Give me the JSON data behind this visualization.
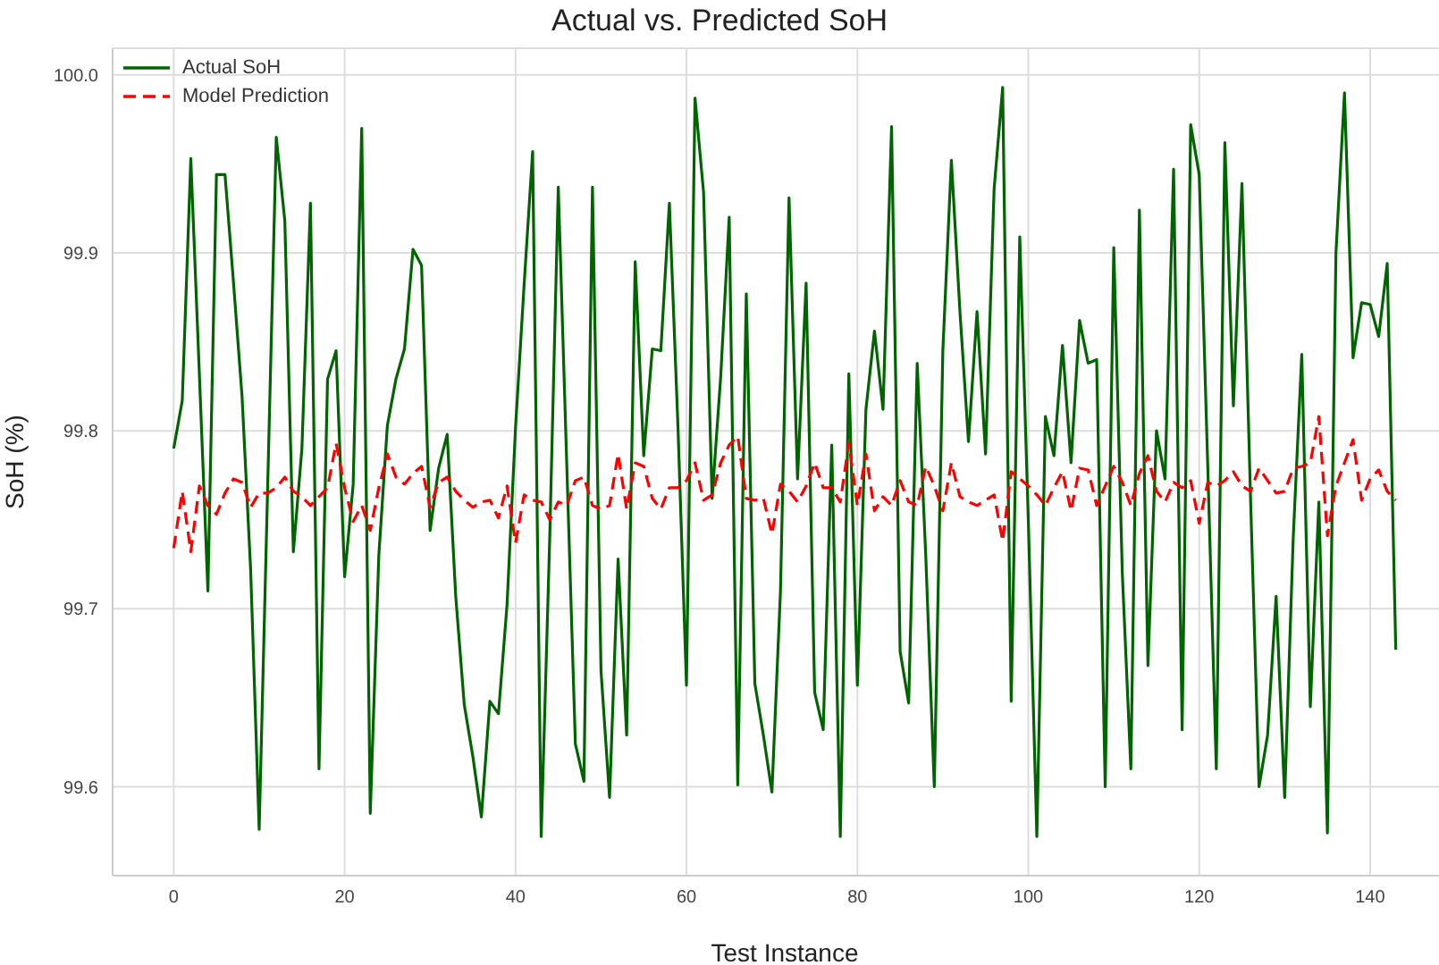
{
  "chart_data": {
    "type": "line",
    "title": "Actual vs. Predicted SoH",
    "xlabel": "Test Instance",
    "ylabel": "SoH (%)",
    "x": [
      0,
      1,
      2,
      3,
      4,
      5,
      6,
      7,
      8,
      9,
      10,
      11,
      12,
      13,
      14,
      15,
      16,
      17,
      18,
      19,
      20,
      21,
      22,
      23,
      24,
      25,
      26,
      27,
      28,
      29,
      30,
      31,
      32,
      33,
      34,
      35,
      36,
      37,
      38,
      39,
      40,
      41,
      42,
      43,
      44,
      45,
      46,
      47,
      48,
      49,
      50,
      51,
      52,
      53,
      54,
      55,
      56,
      57,
      58,
      59,
      60,
      61,
      62,
      63,
      64,
      65,
      66,
      67,
      68,
      69,
      70,
      71,
      72,
      73,
      74,
      75,
      76,
      77,
      78,
      79,
      80,
      81,
      82,
      83,
      84,
      85,
      86,
      87,
      88,
      89,
      90,
      91,
      92,
      93,
      94,
      95,
      96,
      97,
      98,
      99,
      100,
      101,
      102,
      103,
      104,
      105,
      106,
      107,
      108,
      109,
      110,
      111,
      112,
      113,
      114,
      115,
      116,
      117,
      118,
      119,
      120,
      121,
      122,
      123,
      124,
      125,
      126,
      127,
      128,
      129,
      130,
      131,
      132,
      133,
      134,
      135,
      136,
      137,
      138,
      139,
      140,
      141,
      142,
      143
    ],
    "series": [
      {
        "name": "Actual SoH",
        "color": "#006400",
        "line_style": "solid",
        "values": [
          99.79,
          99.817,
          99.953,
          99.832,
          99.71,
          99.944,
          99.944,
          99.883,
          99.819,
          99.722,
          99.576,
          99.77,
          99.965,
          99.918,
          99.732,
          99.79,
          99.928,
          99.61,
          99.829,
          99.845,
          99.718,
          99.77,
          99.97,
          99.585,
          99.73,
          99.803,
          99.829,
          99.846,
          99.902,
          99.893,
          99.744,
          99.779,
          99.798,
          99.707,
          99.646,
          99.617,
          99.583,
          99.648,
          99.641,
          99.702,
          99.802,
          99.882,
          99.957,
          99.572,
          99.74,
          99.937,
          99.78,
          99.624,
          99.603,
          99.937,
          99.665,
          99.594,
          99.728,
          99.629,
          99.895,
          99.786,
          99.846,
          99.845,
          99.928,
          99.803,
          99.657,
          99.987,
          99.934,
          99.762,
          99.83,
          99.92,
          99.601,
          99.877,
          99.658,
          99.629,
          99.597,
          99.71,
          99.931,
          99.773,
          99.883,
          99.653,
          99.632,
          99.792,
          99.572,
          99.832,
          99.657,
          99.812,
          99.856,
          99.812,
          99.971,
          99.676,
          99.647,
          99.838,
          99.73,
          99.6,
          99.845,
          99.952,
          99.867,
          99.794,
          99.867,
          99.787,
          99.936,
          99.993,
          99.648,
          99.909,
          99.75,
          99.572,
          99.808,
          99.786,
          99.848,
          99.782,
          99.862,
          99.838,
          99.84,
          99.6,
          99.903,
          99.72,
          99.61,
          99.924,
          99.668,
          99.8,
          99.773,
          99.947,
          99.632,
          99.972,
          99.944,
          99.78,
          99.61,
          99.962,
          99.814,
          99.939,
          99.763,
          99.6,
          99.629,
          99.707,
          99.594,
          99.74,
          99.843,
          99.645,
          99.76,
          99.574,
          99.9,
          99.99,
          99.841,
          99.872,
          99.871,
          99.853,
          99.894,
          99.677
        ]
      },
      {
        "name": "Model Prediction",
        "color": "#ff0000",
        "line_style": "dashed",
        "values": [
          99.734,
          99.766,
          99.732,
          99.769,
          99.758,
          99.753,
          99.765,
          99.773,
          99.771,
          99.757,
          99.765,
          99.765,
          99.768,
          99.774,
          99.766,
          99.763,
          99.758,
          99.763,
          99.768,
          99.793,
          99.768,
          99.749,
          99.758,
          99.744,
          99.768,
          99.787,
          99.774,
          99.77,
          99.776,
          99.78,
          99.757,
          99.771,
          99.774,
          99.766,
          99.761,
          99.757,
          99.76,
          99.761,
          99.751,
          99.769,
          99.737,
          99.764,
          99.761,
          99.76,
          99.75,
          99.76,
          99.758,
          99.772,
          99.774,
          99.758,
          99.756,
          99.758,
          99.787,
          99.756,
          99.782,
          99.78,
          99.762,
          99.756,
          99.768,
          99.768,
          99.772,
          99.782,
          99.761,
          99.764,
          99.782,
          99.792,
          99.797,
          99.762,
          99.761,
          99.762,
          99.742,
          99.77,
          99.766,
          99.76,
          99.769,
          99.782,
          99.768,
          99.768,
          99.76,
          99.793,
          99.758,
          99.787,
          99.755,
          99.763,
          99.758,
          99.772,
          99.76,
          99.758,
          99.78,
          99.769,
          99.755,
          99.782,
          99.763,
          99.76,
          99.758,
          99.761,
          99.764,
          99.738,
          99.777,
          99.773,
          99.769,
          99.764,
          99.758,
          99.768,
          99.777,
          99.755,
          99.779,
          99.778,
          99.758,
          99.769,
          99.78,
          99.771,
          99.758,
          99.776,
          99.786,
          99.766,
          99.76,
          99.771,
          99.768,
          99.772,
          99.748,
          99.771,
          99.769,
          99.772,
          99.777,
          99.769,
          99.766,
          99.779,
          99.772,
          99.765,
          99.766,
          99.779,
          99.78,
          99.782,
          99.808,
          99.741,
          99.769,
          99.782,
          99.795,
          99.761,
          99.773,
          99.778,
          99.766,
          99.761
        ]
      }
    ],
    "xlim": [
      -7.15,
      150.15
    ],
    "xticks": [
      0,
      20,
      40,
      60,
      80,
      100,
      120,
      140
    ],
    "ylim": [
      99.55,
      100.015
    ],
    "yticks": [
      {
        "value": 99.6,
        "label": "99.6"
      },
      {
        "value": 99.7,
        "label": "99.7"
      },
      {
        "value": 99.8,
        "label": "99.8"
      },
      {
        "value": 99.9,
        "label": "99.9"
      },
      {
        "value": 100,
        "label": "100.0"
      }
    ],
    "grid": true,
    "legend": "top left",
    "marker": "none"
  }
}
